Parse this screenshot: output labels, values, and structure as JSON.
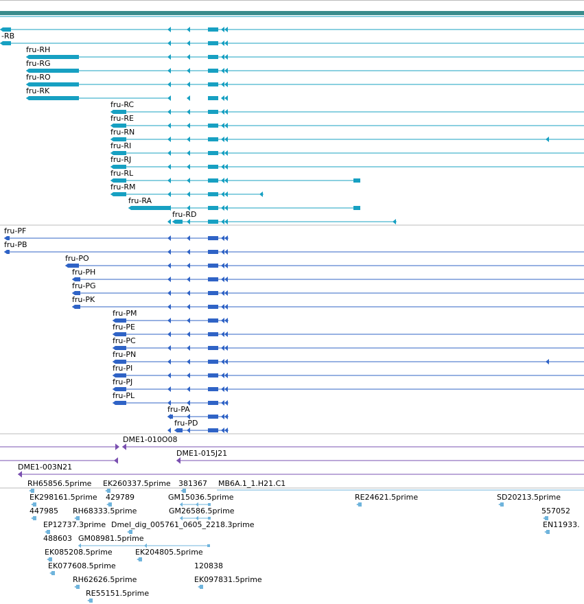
{
  "colors": {
    "top_bar": "#3a8c8c",
    "transcript": "#17a0c2",
    "protein": "#2f63c6",
    "clone": "#7a50b0",
    "est": "#6fb4dc",
    "divider": "#bbbbbb"
  },
  "transcripts": [
    {
      "label": "-RB"
    },
    {
      "label": ""
    },
    {
      "label": "fru-RH"
    },
    {
      "label": "fru-RG"
    },
    {
      "label": "fru-RO"
    },
    {
      "label": "fru-RK"
    },
    {
      "label": "fru-RC"
    },
    {
      "label": "fru-RE"
    },
    {
      "label": "fru-RN"
    },
    {
      "label": "fru-RI"
    },
    {
      "label": "fru-RJ"
    },
    {
      "label": "fru-RL"
    },
    {
      "label": "fru-RM"
    },
    {
      "label": "fru-RA"
    },
    {
      "label": "fru-RD"
    }
  ],
  "proteins": [
    {
      "label": "fru-PF"
    },
    {
      "label": "fru-PB"
    },
    {
      "label": "fru-PO"
    },
    {
      "label": "fru-PH"
    },
    {
      "label": "fru-PG"
    },
    {
      "label": "fru-PK"
    },
    {
      "label": "fru-PM"
    },
    {
      "label": "fru-PE"
    },
    {
      "label": "fru-PC"
    },
    {
      "label": "fru-PN"
    },
    {
      "label": "fru-PI"
    },
    {
      "label": "fru-PJ"
    },
    {
      "label": "fru-PL"
    },
    {
      "label": "fru-PA"
    },
    {
      "label": "fru-PD"
    }
  ],
  "clones": [
    {
      "label": "DME1-010O08"
    },
    {
      "label": "DME1-015J21"
    },
    {
      "label": "DME1-003N21"
    }
  ],
  "ests": [
    {
      "label": "RH65856.5prime"
    },
    {
      "label": "EK260337.5prime"
    },
    {
      "label": "381367"
    },
    {
      "label": "MB6A.1_1.H21.C1"
    },
    {
      "label": "EK298161.5prime"
    },
    {
      "label": "429789"
    },
    {
      "label": "GM15036.5prime"
    },
    {
      "label": "RE24621.5prime"
    },
    {
      "label": "SD20213.5prime"
    },
    {
      "label": "447985"
    },
    {
      "label": "RH68333.5prime"
    },
    {
      "label": "GM26586.5prime"
    },
    {
      "label": "557052"
    },
    {
      "label": "EP12737.3prime"
    },
    {
      "label": "Dmel_dig_005761_0605_2218.3prime"
    },
    {
      "label": "EN11933."
    },
    {
      "label": "488603"
    },
    {
      "label": "GM08981.5prime"
    },
    {
      "label": "EK085208.5prime"
    },
    {
      "label": "EK204805.5prime"
    },
    {
      "label": "120838"
    },
    {
      "label": "EK077608.5prime"
    },
    {
      "label": "EK097831.5prime"
    },
    {
      "label": "RH62626.5prime"
    },
    {
      "label": "RE55151.5prime"
    }
  ]
}
